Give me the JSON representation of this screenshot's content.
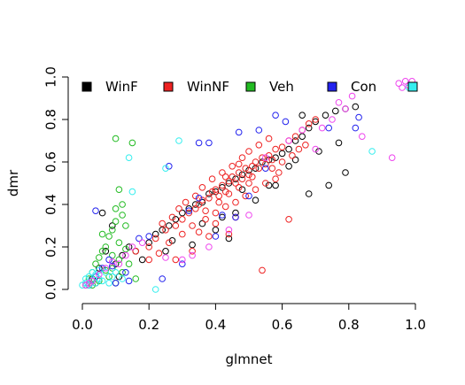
{
  "chart_data": {
    "type": "scatter",
    "title": "",
    "xlabel": "glmnet",
    "ylabel": "dmr",
    "xlim": [
      0,
      1
    ],
    "ylim": [
      0,
      1
    ],
    "xticks": [
      "0.0",
      "0.2",
      "0.4",
      "0.6",
      "0.8",
      "1.0"
    ],
    "yticks": [
      "0.0",
      "0.2",
      "0.4",
      "0.6",
      "0.8",
      "1.0"
    ],
    "grid": false,
    "legend_placement": "top",
    "legend": [
      {
        "name": "WinF",
        "color": "#000000"
      },
      {
        "name": "WinNF",
        "color": "#ee2222"
      },
      {
        "name": "Veh",
        "color": "#22bb22"
      },
      {
        "name": "Con",
        "color": "#2222ee"
      },
      {
        "name": "",
        "color": "#33eeee"
      }
    ],
    "series": [
      {
        "name": "WinF",
        "color": "#000000",
        "points": [
          [
            0.02,
            0.02
          ],
          [
            0.03,
            0.05
          ],
          [
            0.05,
            0.1
          ],
          [
            0.07,
            0.18
          ],
          [
            0.1,
            0.12
          ],
          [
            0.12,
            0.16
          ],
          [
            0.14,
            0.2
          ],
          [
            0.16,
            0.18
          ],
          [
            0.2,
            0.22
          ],
          [
            0.22,
            0.26
          ],
          [
            0.24,
            0.28
          ],
          [
            0.26,
            0.3
          ],
          [
            0.28,
            0.33
          ],
          [
            0.3,
            0.36
          ],
          [
            0.32,
            0.38
          ],
          [
            0.34,
            0.4
          ],
          [
            0.36,
            0.41
          ],
          [
            0.38,
            0.45
          ],
          [
            0.4,
            0.46
          ],
          [
            0.42,
            0.48
          ],
          [
            0.44,
            0.5
          ],
          [
            0.46,
            0.52
          ],
          [
            0.48,
            0.54
          ],
          [
            0.5,
            0.56
          ],
          [
            0.52,
            0.57
          ],
          [
            0.54,
            0.6
          ],
          [
            0.56,
            0.61
          ],
          [
            0.58,
            0.62
          ],
          [
            0.6,
            0.64
          ],
          [
            0.62,
            0.66
          ],
          [
            0.64,
            0.7
          ],
          [
            0.66,
            0.72
          ],
          [
            0.68,
            0.76
          ],
          [
            0.7,
            0.79
          ],
          [
            0.73,
            0.82
          ],
          [
            0.76,
            0.84
          ],
          [
            0.79,
            0.85
          ],
          [
            0.82,
            0.86
          ],
          [
            0.68,
            0.45
          ],
          [
            0.74,
            0.49
          ],
          [
            0.79,
            0.55
          ],
          [
            0.44,
            0.24
          ],
          [
            0.36,
            0.31
          ],
          [
            0.46,
            0.36
          ],
          [
            0.58,
            0.49
          ],
          [
            0.64,
            0.61
          ],
          [
            0.71,
            0.65
          ],
          [
            0.77,
            0.69
          ],
          [
            0.33,
            0.21
          ],
          [
            0.4,
            0.28
          ],
          [
            0.27,
            0.23
          ],
          [
            0.25,
            0.18
          ],
          [
            0.06,
            0.36
          ],
          [
            0.09,
            0.3
          ],
          [
            0.11,
            0.06
          ],
          [
            0.04,
            0.03
          ],
          [
            0.52,
            0.42
          ],
          [
            0.56,
            0.49
          ],
          [
            0.62,
            0.58
          ],
          [
            0.18,
            0.14
          ],
          [
            0.42,
            0.34
          ],
          [
            0.48,
            0.47
          ],
          [
            0.66,
            0.82
          ]
        ]
      },
      {
        "name": "WinNF",
        "color": "#ee2222",
        "points": [
          [
            0.16,
            0.18
          ],
          [
            0.2,
            0.2
          ],
          [
            0.22,
            0.24
          ],
          [
            0.25,
            0.28
          ],
          [
            0.28,
            0.3
          ],
          [
            0.3,
            0.33
          ],
          [
            0.32,
            0.36
          ],
          [
            0.34,
            0.38
          ],
          [
            0.35,
            0.4
          ],
          [
            0.36,
            0.42
          ],
          [
            0.38,
            0.43
          ],
          [
            0.39,
            0.46
          ],
          [
            0.4,
            0.47
          ],
          [
            0.41,
            0.44
          ],
          [
            0.42,
            0.49
          ],
          [
            0.43,
            0.46
          ],
          [
            0.44,
            0.51
          ],
          [
            0.45,
            0.53
          ],
          [
            0.46,
            0.5
          ],
          [
            0.47,
            0.55
          ],
          [
            0.48,
            0.52
          ],
          [
            0.49,
            0.57
          ],
          [
            0.5,
            0.54
          ],
          [
            0.51,
            0.58
          ],
          [
            0.52,
            0.6
          ],
          [
            0.53,
            0.57
          ],
          [
            0.54,
            0.62
          ],
          [
            0.55,
            0.59
          ],
          [
            0.56,
            0.63
          ],
          [
            0.57,
            0.61
          ],
          [
            0.58,
            0.66
          ],
          [
            0.6,
            0.67
          ],
          [
            0.62,
            0.7
          ],
          [
            0.64,
            0.72
          ],
          [
            0.66,
            0.75
          ],
          [
            0.68,
            0.78
          ],
          [
            0.7,
            0.8
          ],
          [
            0.3,
            0.26
          ],
          [
            0.33,
            0.3
          ],
          [
            0.37,
            0.33
          ],
          [
            0.4,
            0.36
          ],
          [
            0.43,
            0.39
          ],
          [
            0.46,
            0.41
          ],
          [
            0.49,
            0.44
          ],
          [
            0.52,
            0.47
          ],
          [
            0.55,
            0.5
          ],
          [
            0.58,
            0.52
          ],
          [
            0.36,
            0.48
          ],
          [
            0.39,
            0.52
          ],
          [
            0.42,
            0.55
          ],
          [
            0.45,
            0.58
          ],
          [
            0.48,
            0.62
          ],
          [
            0.5,
            0.65
          ],
          [
            0.53,
            0.68
          ],
          [
            0.56,
            0.71
          ],
          [
            0.26,
            0.22
          ],
          [
            0.23,
            0.17
          ],
          [
            0.2,
            0.14
          ],
          [
            0.29,
            0.38
          ],
          [
            0.31,
            0.41
          ],
          [
            0.34,
            0.44
          ],
          [
            0.37,
            0.37
          ],
          [
            0.41,
            0.41
          ],
          [
            0.44,
            0.45
          ],
          [
            0.47,
            0.48
          ],
          [
            0.5,
            0.5
          ],
          [
            0.54,
            0.09
          ],
          [
            0.62,
            0.33
          ],
          [
            0.44,
            0.26
          ],
          [
            0.4,
            0.31
          ],
          [
            0.28,
            0.14
          ],
          [
            0.33,
            0.18
          ],
          [
            0.38,
            0.25
          ],
          [
            0.46,
            0.34
          ],
          [
            0.59,
            0.55
          ],
          [
            0.63,
            0.63
          ],
          [
            0.67,
            0.68
          ],
          [
            0.27,
            0.34
          ],
          [
            0.24,
            0.31
          ],
          [
            0.35,
            0.27
          ],
          [
            0.51,
            0.53
          ],
          [
            0.57,
            0.57
          ],
          [
            0.6,
            0.6
          ],
          [
            0.65,
            0.66
          ],
          [
            0.43,
            0.53
          ],
          [
            0.47,
            0.59
          ]
        ]
      },
      {
        "name": "Veh",
        "color": "#22bb22",
        "points": [
          [
            0.01,
            0.02
          ],
          [
            0.02,
            0.05
          ],
          [
            0.03,
            0.08
          ],
          [
            0.04,
            0.12
          ],
          [
            0.05,
            0.15
          ],
          [
            0.06,
            0.18
          ],
          [
            0.07,
            0.2
          ],
          [
            0.08,
            0.25
          ],
          [
            0.09,
            0.28
          ],
          [
            0.1,
            0.32
          ],
          [
            0.1,
            0.38
          ],
          [
            0.11,
            0.47
          ],
          [
            0.1,
            0.71
          ],
          [
            0.15,
            0.69
          ],
          [
            0.12,
            0.35
          ],
          [
            0.13,
            0.3
          ],
          [
            0.08,
            0.06
          ],
          [
            0.09,
            0.1
          ],
          [
            0.11,
            0.14
          ],
          [
            0.12,
            0.08
          ],
          [
            0.14,
            0.12
          ],
          [
            0.16,
            0.05
          ],
          [
            0.05,
            0.04
          ],
          [
            0.07,
            0.09
          ],
          [
            0.09,
            0.16
          ],
          [
            0.06,
            0.26
          ],
          [
            0.11,
            0.22
          ],
          [
            0.13,
            0.19
          ],
          [
            0.03,
            0.02
          ],
          [
            0.1,
            0.03
          ],
          [
            0.12,
            0.4
          ]
        ]
      },
      {
        "name": "Con",
        "color": "#2222ee",
        "points": [
          [
            0.02,
            0.02
          ],
          [
            0.04,
            0.06
          ],
          [
            0.06,
            0.1
          ],
          [
            0.08,
            0.14
          ],
          [
            0.1,
            0.03
          ],
          [
            0.14,
            0.04
          ],
          [
            0.17,
            0.24
          ],
          [
            0.2,
            0.25
          ],
          [
            0.26,
            0.58
          ],
          [
            0.32,
            0.37
          ],
          [
            0.35,
            0.69
          ],
          [
            0.38,
            0.69
          ],
          [
            0.4,
            0.25
          ],
          [
            0.46,
            0.34
          ],
          [
            0.47,
            0.74
          ],
          [
            0.53,
            0.75
          ],
          [
            0.55,
            0.57
          ],
          [
            0.58,
            0.82
          ],
          [
            0.61,
            0.79
          ],
          [
            0.74,
            0.76
          ],
          [
            0.83,
            0.81
          ],
          [
            0.82,
            0.76
          ],
          [
            0.04,
            0.37
          ],
          [
            0.13,
            0.08
          ],
          [
            0.35,
            0.43
          ],
          [
            0.42,
            0.35
          ],
          [
            0.5,
            0.44
          ],
          [
            0.24,
            0.05
          ],
          [
            0.3,
            0.12
          ],
          [
            0.09,
            0.11
          ]
        ]
      },
      {
        "name": "",
        "color": "#33eeee",
        "points": [
          [
            0.0,
            0.02
          ],
          [
            0.01,
            0.03
          ],
          [
            0.01,
            0.05
          ],
          [
            0.02,
            0.02
          ],
          [
            0.02,
            0.06
          ],
          [
            0.03,
            0.04
          ],
          [
            0.03,
            0.08
          ],
          [
            0.04,
            0.03
          ],
          [
            0.04,
            0.07
          ],
          [
            0.05,
            0.05
          ],
          [
            0.05,
            0.09
          ],
          [
            0.06,
            0.04
          ],
          [
            0.07,
            0.08
          ],
          [
            0.08,
            0.03
          ],
          [
            0.09,
            0.06
          ],
          [
            0.1,
            0.08
          ],
          [
            0.12,
            0.05
          ],
          [
            0.14,
            0.62
          ],
          [
            0.15,
            0.46
          ],
          [
            0.22,
            0.0
          ],
          [
            0.25,
            0.57
          ],
          [
            0.29,
            0.7
          ],
          [
            0.87,
            0.65
          ],
          [
            0.98,
            0.95
          ]
        ]
      },
      {
        "name": "",
        "color": "#ee44ee",
        "points": [
          [
            0.01,
            0.02
          ],
          [
            0.02,
            0.03
          ],
          [
            0.03,
            0.04
          ],
          [
            0.05,
            0.07
          ],
          [
            0.07,
            0.1
          ],
          [
            0.09,
            0.13
          ],
          [
            0.11,
            0.12
          ],
          [
            0.13,
            0.16
          ],
          [
            0.15,
            0.2
          ],
          [
            0.18,
            0.22
          ],
          [
            0.25,
            0.15
          ],
          [
            0.3,
            0.14
          ],
          [
            0.33,
            0.16
          ],
          [
            0.38,
            0.2
          ],
          [
            0.44,
            0.28
          ],
          [
            0.5,
            0.35
          ],
          [
            0.62,
            0.7
          ],
          [
            0.66,
            0.75
          ],
          [
            0.72,
            0.76
          ],
          [
            0.75,
            0.8
          ],
          [
            0.77,
            0.88
          ],
          [
            0.79,
            0.85
          ],
          [
            0.81,
            0.91
          ],
          [
            0.84,
            0.72
          ],
          [
            0.93,
            0.62
          ],
          [
            0.95,
            0.97
          ],
          [
            0.96,
            0.95
          ],
          [
            0.97,
            0.98
          ],
          [
            0.98,
            0.96
          ],
          [
            0.99,
            0.98
          ],
          [
            0.55,
            0.62
          ],
          [
            0.7,
            0.66
          ]
        ]
      }
    ]
  }
}
